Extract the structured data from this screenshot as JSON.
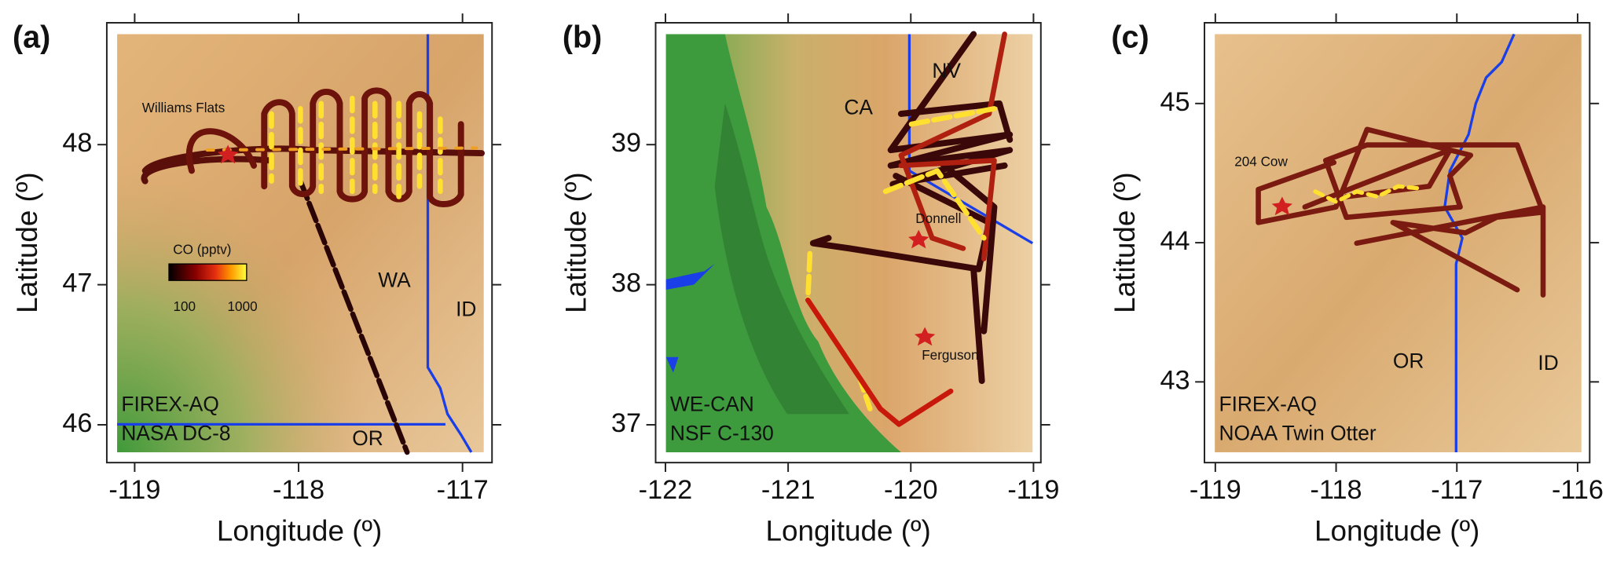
{
  "panels": [
    {
      "label": "(a)",
      "xlabel": "Longitude (º)",
      "ylabel": "Latitude (º)",
      "xlim": [
        -119.17,
        -116.82
      ],
      "ylim": [
        45.73,
        48.87
      ],
      "xticks": [
        -119,
        -118,
        -117
      ],
      "yticks": [
        46,
        47,
        48
      ],
      "places": [
        "Williams Flats",
        "WA",
        "ID",
        "OR"
      ],
      "caption": [
        "FIREX-AQ",
        "NASA DC-8"
      ],
      "legend": {
        "title": "CO (pptv)",
        "labels": [
          100,
          1000
        ]
      }
    },
    {
      "label": "(b)",
      "xlabel": "Longitude (º)",
      "ylabel": "Latitude (º)",
      "xlim": [
        -122.08,
        -118.94
      ],
      "ylim": [
        36.73,
        39.87
      ],
      "xticks": [
        -122,
        -121,
        -120,
        -119
      ],
      "yticks": [
        37,
        38,
        39
      ],
      "places": [
        "CA",
        "NV",
        "Donnell",
        "Ferguson"
      ],
      "caption": [
        "WE-CAN",
        "NSF C-130"
      ]
    },
    {
      "label": "(c)",
      "xlabel": "Longitude (º)",
      "ylabel": "Latitude (º)",
      "xlim": [
        -119.09,
        -115.9
      ],
      "ylim": [
        42.42,
        45.58
      ],
      "xticks": [
        -119,
        -118,
        -117,
        -116
      ],
      "yticks": [
        43,
        44,
        45
      ],
      "places": [
        "204 Cow",
        "OR",
        "ID"
      ],
      "caption": [
        "FIREX-AQ",
        "NOAA Twin Otter"
      ]
    }
  ]
}
